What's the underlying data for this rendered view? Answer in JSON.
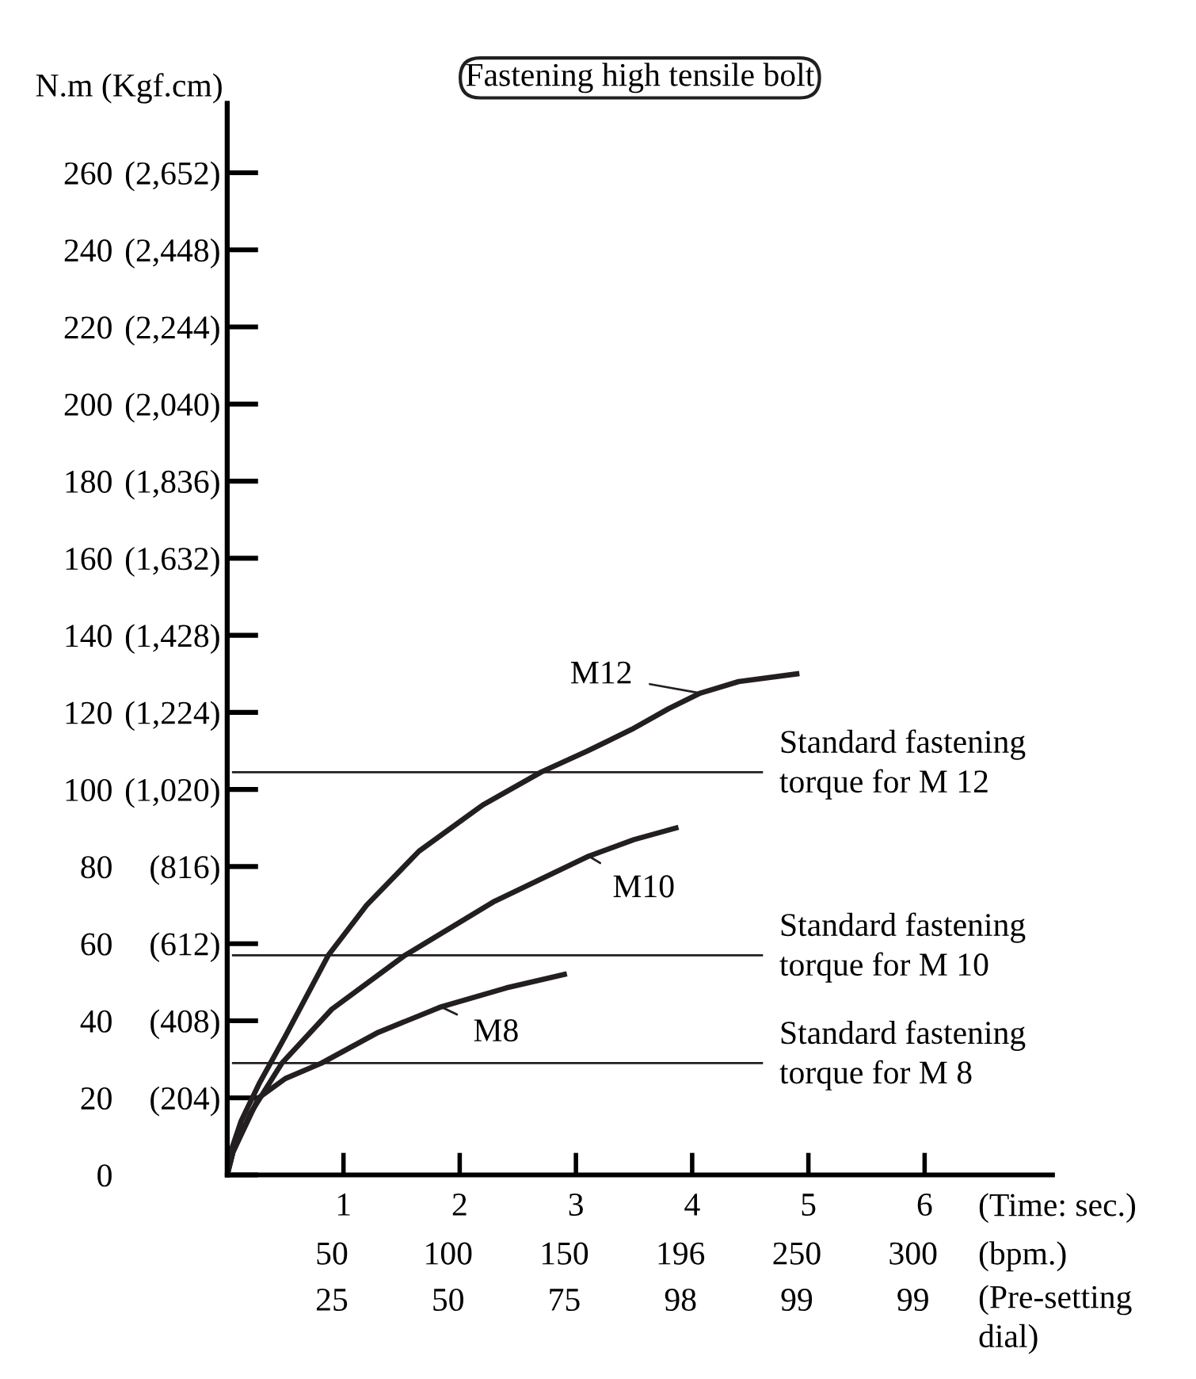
{
  "chart_data": {
    "type": "line",
    "title": "Fastening high tensile bolt",
    "ylabel": "N.m (Kgf.cm)",
    "xlim": [
      0,
      7.1
    ],
    "ylim": [
      0,
      278
    ],
    "y2lim": [
      0,
      2835.6
    ],
    "xticks": [
      1,
      2,
      3,
      4,
      5,
      6
    ],
    "yticks": [
      0,
      20,
      40,
      60,
      80,
      100,
      120,
      140,
      160,
      180,
      200,
      220,
      240,
      260
    ],
    "y2ticks": [
      {
        "value": 204,
        "label": "(204)"
      },
      {
        "value": 408,
        "label": "(408)"
      },
      {
        "value": 612,
        "label": "(612)"
      },
      {
        "value": 816,
        "label": "(816)"
      },
      {
        "value": 1020,
        "label": "(1,020)"
      },
      {
        "value": 1224,
        "label": "(1,224)"
      },
      {
        "value": 1428,
        "label": "(1,428)"
      },
      {
        "value": 1632,
        "label": "(1,632)"
      },
      {
        "value": 1836,
        "label": "(1,836)"
      },
      {
        "value": 2040,
        "label": "(2,040)"
      },
      {
        "value": 2244,
        "label": "(2,244)"
      },
      {
        "value": 2448,
        "label": "(2,448)"
      },
      {
        "value": 2652,
        "label": "(2,652)"
      }
    ],
    "series": [
      {
        "color": "#231f20",
        "x": [
          0,
          0.03,
          0.12,
          0.28,
          0.5,
          0.87,
          1.2,
          1.65,
          2.2,
          2.7,
          3.1,
          3.48,
          3.8,
          4.07,
          4.4,
          4.9
        ],
        "values": [
          0,
          6,
          14,
          24,
          36,
          57,
          70,
          84,
          96,
          104.5,
          110,
          115.6,
          121,
          125,
          128,
          130
        ]
      },
      {
        "color": "#231f20",
        "x": [
          0,
          0.05,
          0.2,
          0.47,
          0.9,
          1.53,
          2.3,
          3.11,
          3.5,
          3.86
        ],
        "values": [
          0,
          6,
          16,
          29,
          43,
          57,
          71,
          82.7,
          87,
          90
        ]
      },
      {
        "color": "#231f20",
        "x": [
          0,
          0.05,
          0.27,
          0.5,
          0.81,
          1.3,
          1.84,
          2.4,
          2.9
        ],
        "values": [
          0,
          6,
          20,
          25,
          29,
          37,
          43.6,
          48.5,
          52
        ]
      }
    ],
    "ref_lines": [
      {
        "axis": "y",
        "value": 104.5,
        "label": "Standard fastening\ntorque for M 12",
        "color": "#231f20"
      },
      {
        "axis": "y",
        "value": 57,
        "label": "Standard fastening\ntorque for M 10",
        "color": "#231f20"
      },
      {
        "axis": "y",
        "value": 29,
        "label": "Standard fastening\ntorque for M 8",
        "color": "#231f20"
      }
    ],
    "annotations": [
      {
        "text": "M12",
        "x": 4.07,
        "y": 125
      },
      {
        "text": "M10",
        "x": 3.11,
        "y": 82.7
      },
      {
        "text": "M8",
        "x": 1.84,
        "y": 43.6
      },
      "(Time: sec.)",
      "(bpm.)",
      "(Pre-setting\ndial)",
      "50",
      "100",
      "150",
      "196",
      "250",
      "300",
      "25",
      "50",
      "75",
      "98",
      "99",
      "99"
    ],
    "grid": false,
    "marker": "none",
    "line_style": "solid"
  }
}
